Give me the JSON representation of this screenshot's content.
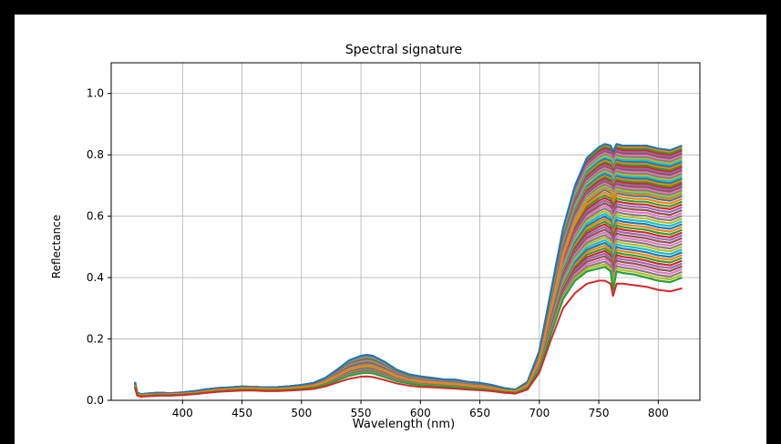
{
  "chart_data": {
    "type": "line",
    "title": "Spectral signature",
    "xlabel": "Wavelength (nm)",
    "ylabel": "Reflectance",
    "xlim": [
      340,
      835
    ],
    "ylim": [
      0.0,
      1.1
    ],
    "xticks": [
      400,
      450,
      500,
      550,
      600,
      650,
      700,
      750,
      800
    ],
    "yticks": [
      0.0,
      0.2,
      0.4,
      0.6,
      0.8,
      1.0
    ],
    "xtick_labels": [
      "400",
      "450",
      "500",
      "550",
      "600",
      "650",
      "700",
      "750",
      "800"
    ],
    "ytick_labels": [
      "0.0",
      "0.2",
      "0.4",
      "0.6",
      "0.8",
      "1.0"
    ],
    "grid": true,
    "palette": [
      "#1f77b4",
      "#ff7f0e",
      "#2ca02c",
      "#d62728",
      "#9467bd",
      "#8c564b",
      "#e377c2",
      "#7f7f7f",
      "#bcbd22",
      "#17becf"
    ],
    "x": [
      360,
      362,
      365,
      370,
      380,
      390,
      400,
      410,
      420,
      430,
      440,
      450,
      460,
      470,
      480,
      490,
      500,
      510,
      520,
      530,
      540,
      550,
      555,
      560,
      570,
      580,
      590,
      600,
      610,
      620,
      630,
      640,
      650,
      660,
      670,
      680,
      690,
      700,
      710,
      720,
      730,
      740,
      750,
      755,
      760,
      762,
      765,
      770,
      780,
      790,
      800,
      810,
      820
    ],
    "series": [
      {
        "values": [
          0.06,
          0.025,
          0.02,
          0.022,
          0.025,
          0.023,
          0.026,
          0.03,
          0.036,
          0.04,
          0.042,
          0.045,
          0.044,
          0.042,
          0.043,
          0.046,
          0.05,
          0.057,
          0.073,
          0.1,
          0.13,
          0.145,
          0.148,
          0.145,
          0.125,
          0.1,
          0.085,
          0.078,
          0.073,
          0.068,
          0.067,
          0.06,
          0.057,
          0.05,
          0.04,
          0.035,
          0.06,
          0.16,
          0.36,
          0.56,
          0.7,
          0.79,
          0.825,
          0.835,
          0.83,
          0.81,
          0.835,
          0.83,
          0.83,
          0.83,
          0.82,
          0.815,
          0.83
        ]
      },
      {
        "values": [
          0.05,
          0.02,
          0.017,
          0.018,
          0.02,
          0.02,
          0.022,
          0.025,
          0.03,
          0.035,
          0.037,
          0.04,
          0.04,
          0.038,
          0.038,
          0.04,
          0.043,
          0.048,
          0.06,
          0.08,
          0.1,
          0.11,
          0.112,
          0.11,
          0.095,
          0.078,
          0.068,
          0.062,
          0.058,
          0.055,
          0.053,
          0.048,
          0.045,
          0.04,
          0.033,
          0.03,
          0.05,
          0.13,
          0.3,
          0.47,
          0.58,
          0.65,
          0.68,
          0.69,
          0.68,
          0.66,
          0.68,
          0.675,
          0.67,
          0.67,
          0.66,
          0.655,
          0.67
        ]
      },
      {
        "values": [
          0.045,
          0.017,
          0.014,
          0.015,
          0.017,
          0.017,
          0.019,
          0.022,
          0.026,
          0.03,
          0.033,
          0.035,
          0.035,
          0.033,
          0.033,
          0.035,
          0.038,
          0.042,
          0.05,
          0.065,
          0.08,
          0.088,
          0.09,
          0.088,
          0.076,
          0.063,
          0.055,
          0.05,
          0.047,
          0.045,
          0.043,
          0.04,
          0.037,
          0.033,
          0.028,
          0.025,
          0.04,
          0.1,
          0.22,
          0.33,
          0.39,
          0.42,
          0.43,
          0.435,
          0.42,
          0.36,
          0.42,
          0.415,
          0.41,
          0.4,
          0.39,
          0.385,
          0.4
        ]
      },
      {
        "values": [
          0.04,
          0.015,
          0.012,
          0.013,
          0.015,
          0.015,
          0.017,
          0.02,
          0.024,
          0.028,
          0.03,
          0.032,
          0.032,
          0.03,
          0.03,
          0.032,
          0.034,
          0.037,
          0.045,
          0.058,
          0.07,
          0.077,
          0.078,
          0.076,
          0.066,
          0.055,
          0.048,
          0.044,
          0.042,
          0.04,
          0.038,
          0.035,
          0.033,
          0.03,
          0.025,
          0.022,
          0.035,
          0.09,
          0.2,
          0.3,
          0.35,
          0.38,
          0.39,
          0.39,
          0.38,
          0.34,
          0.38,
          0.38,
          0.375,
          0.37,
          0.36,
          0.355,
          0.365
        ]
      }
    ],
    "band_count": 60
  }
}
